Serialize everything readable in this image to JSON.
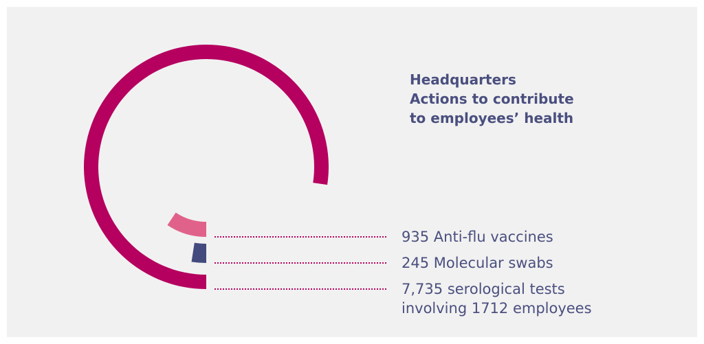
{
  "chart_data": {
    "type": "radial_bar",
    "title": "Headquarters",
    "subtitle": "Actions to contribute to employees’ health",
    "categories": [
      "Anti-flu vaccines",
      "Molecular swabs",
      "serological tests involving 1712 employees"
    ],
    "values": [
      935,
      245,
      7735
    ],
    "value_labels": [
      "935",
      "245",
      "7,735"
    ],
    "colors": [
      "#e0628a",
      "#434a7e",
      "#b5005f"
    ],
    "ylim": [
      0,
      10000
    ]
  }
}
